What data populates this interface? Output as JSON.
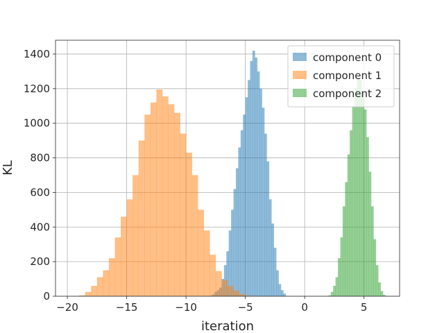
{
  "chart_data": {
    "type": "histogram",
    "xlabel": "iteration",
    "ylabel": "KL",
    "xlim": [
      -21.0,
      8.0
    ],
    "ylim": [
      0,
      1480
    ],
    "xticks": [
      -20,
      -15,
      -10,
      -5,
      0,
      5
    ],
    "yticks": [
      0,
      200,
      400,
      600,
      800,
      1000,
      1200,
      1400
    ],
    "grid": true,
    "legend_position": "top-right",
    "series": [
      {
        "name": "component 0",
        "color": "#1f77b4",
        "opacity": 0.5,
        "bin_start": -8.0,
        "bin_width": 0.2,
        "counts": [
          4,
          10,
          25,
          35,
          50,
          100,
          180,
          260,
          380,
          500,
          620,
          740,
          860,
          960,
          1050,
          1150,
          1250,
          1360,
          1420,
          1380,
          1300,
          1200,
          1090,
          940,
          780,
          560,
          420,
          280,
          150,
          70,
          35,
          15
        ]
      },
      {
        "name": "component 1",
        "color": "#ff7f0e",
        "opacity": 0.5,
        "bin_start": -19.0,
        "bin_width": 0.5,
        "counts": [
          5,
          25,
          60,
          110,
          150,
          220,
          340,
          460,
          560,
          700,
          900,
          1050,
          1120,
          1195,
          1155,
          1110,
          1060,
          940,
          830,
          700,
          500,
          380,
          240,
          145,
          92,
          58,
          32,
          12,
          3
        ]
      },
      {
        "name": "component 2",
        "color": "#2ca02c",
        "opacity": 0.5,
        "bin_start": 2.0,
        "bin_width": 0.2,
        "counts": [
          5,
          25,
          60,
          110,
          220,
          340,
          520,
          660,
          820,
          960,
          1100,
          1200,
          1260,
          1250,
          1180,
          1080,
          920,
          720,
          520,
          330,
          180,
          80,
          30,
          8
        ]
      }
    ]
  }
}
